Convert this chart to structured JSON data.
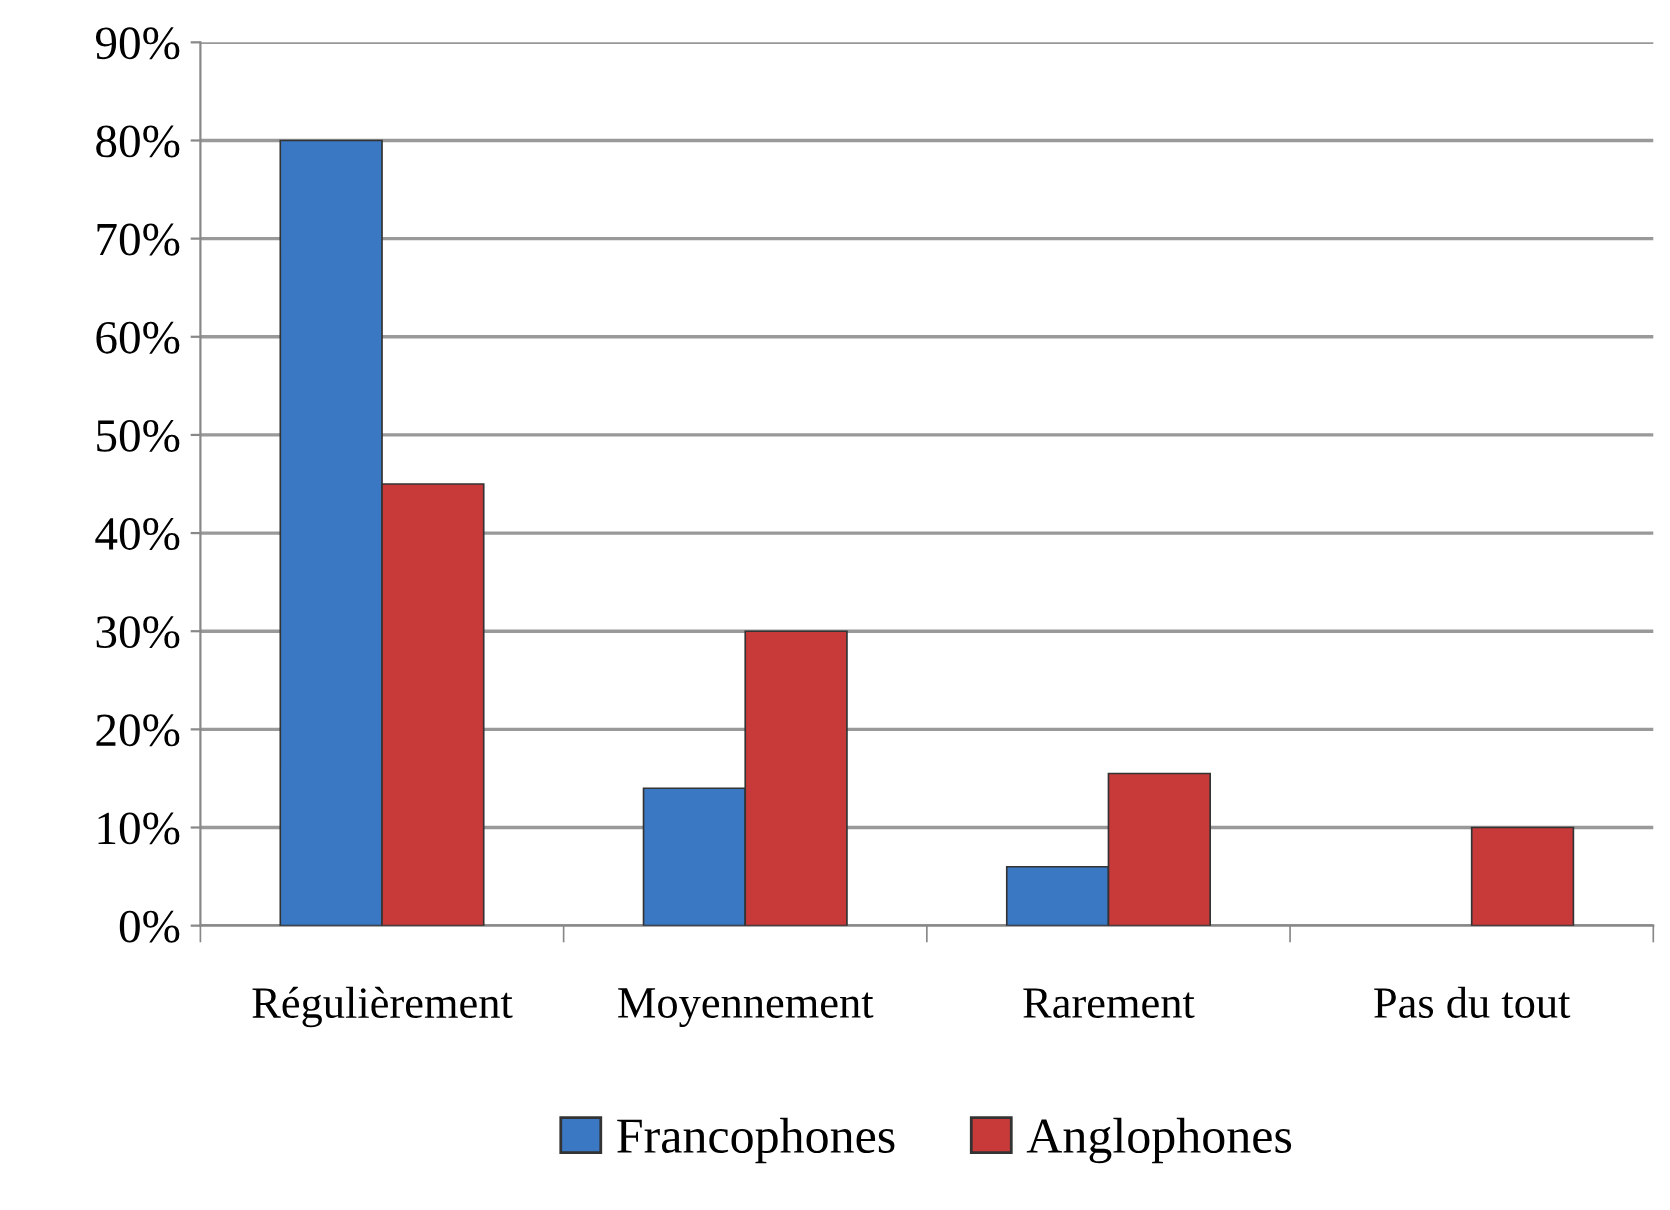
{
  "chart_data": {
    "type": "bar",
    "categories": [
      "Régulièrement",
      "Moyennement",
      "Rarement",
      "Pas du tout"
    ],
    "series": [
      {
        "name": "Francophones",
        "color": "#3a78c4",
        "values": [
          80,
          14,
          6,
          0
        ]
      },
      {
        "name": "Anglophones",
        "color": "#c83a3a",
        "values": [
          45,
          30,
          15.5,
          10
        ]
      }
    ],
    "ylim": [
      0,
      90
    ],
    "yticks": [
      {
        "value": 0,
        "label": "0%"
      },
      {
        "value": 10,
        "label": "10%"
      },
      {
        "value": 20,
        "label": "20%"
      },
      {
        "value": 30,
        "label": "30%"
      },
      {
        "value": 40,
        "label": "40%"
      },
      {
        "value": 50,
        "label": "50%"
      },
      {
        "value": 60,
        "label": "60%"
      },
      {
        "value": 70,
        "label": "70%"
      },
      {
        "value": 80,
        "label": "80%"
      },
      {
        "value": 90,
        "label": "90%"
      }
    ],
    "grid": "y",
    "legend": "bottom"
  }
}
